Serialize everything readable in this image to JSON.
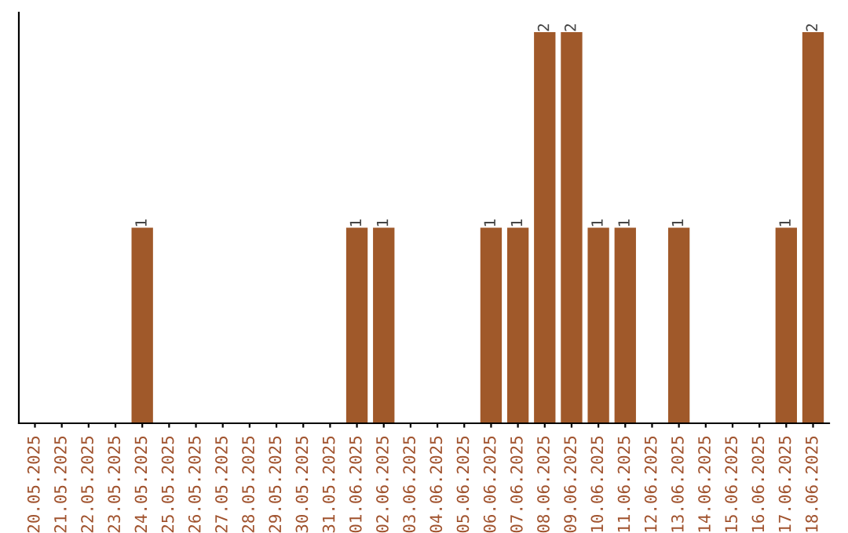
{
  "chart_data": {
    "type": "bar",
    "categories": [
      "20.05.2025",
      "21.05.2025",
      "22.05.2025",
      "23.05.2025",
      "24.05.2025",
      "25.05.2025",
      "26.05.2025",
      "27.05.2025",
      "28.05.2025",
      "29.05.2025",
      "30.05.2025",
      "31.05.2025",
      "01.06.2025",
      "02.06.2025",
      "03.06.2025",
      "04.06.2025",
      "05.06.2025",
      "06.06.2025",
      "07.06.2025",
      "08.06.2025",
      "09.06.2025",
      "10.06.2025",
      "11.06.2025",
      "12.06.2025",
      "13.06.2025",
      "14.06.2025",
      "15.06.2025",
      "16.06.2025",
      "17.06.2025",
      "18.06.2025"
    ],
    "values": [
      0,
      0,
      0,
      0,
      1,
      0,
      0,
      0,
      0,
      0,
      0,
      0,
      1,
      1,
      0,
      0,
      0,
      1,
      1,
      2,
      2,
      1,
      1,
      0,
      1,
      0,
      0,
      0,
      1,
      2
    ],
    "value_labels": [
      null,
      null,
      null,
      null,
      "1",
      null,
      null,
      null,
      null,
      null,
      null,
      null,
      "1",
      "1",
      null,
      null,
      null,
      "1",
      "1",
      "2",
      "2",
      "1",
      "1",
      null,
      "1",
      null,
      null,
      null,
      "1",
      "2"
    ],
    "color": "#a0592a",
    "ylim": [
      0,
      2.1
    ],
    "tick_labels": "x",
    "grid": false,
    "legend": false
  }
}
